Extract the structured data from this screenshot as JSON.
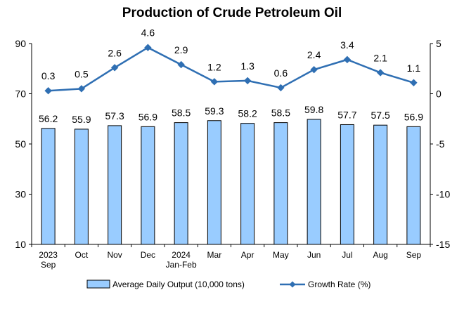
{
  "chart_data": {
    "type": "bar",
    "title": "Production of Crude Petroleum Oil",
    "categories": [
      [
        "2023",
        "Sep"
      ],
      [
        "Oct"
      ],
      [
        "Nov"
      ],
      [
        "Dec"
      ],
      [
        "2024",
        "Jan-Feb"
      ],
      [
        "Mar"
      ],
      [
        "Apr"
      ],
      [
        "May"
      ],
      [
        "Jun"
      ],
      [
        "Jul"
      ],
      [
        "Aug"
      ],
      [
        "Sep"
      ]
    ],
    "series": [
      {
        "name": "Average Daily Output (10,000 tons)",
        "type": "bar",
        "axis": "left",
        "color": "#99ccff",
        "values": [
          56.2,
          55.9,
          57.3,
          56.9,
          58.5,
          59.3,
          58.2,
          58.5,
          59.8,
          57.7,
          57.5,
          56.9
        ],
        "labels": [
          "56.2",
          "55.9",
          "57.3",
          "56.9",
          "58.5",
          "59.3",
          "58.2",
          "58.5",
          "59.8",
          "57.7",
          "57.5",
          "56.9"
        ]
      },
      {
        "name": "Growth Rate (%)",
        "type": "line",
        "axis": "right",
        "color": "#2f6fb3",
        "marker": "diamond",
        "values": [
          0.3,
          0.5,
          2.6,
          4.6,
          2.9,
          1.2,
          1.3,
          0.6,
          2.4,
          3.4,
          2.1,
          1.1
        ],
        "labels": [
          "0.3",
          "0.5",
          "2.6",
          "4.6",
          "2.9",
          "1.2",
          "1.3",
          "0.6",
          "2.4",
          "3.4",
          "2.1",
          "1.1"
        ]
      }
    ],
    "y_left": {
      "min": 10,
      "max": 90,
      "ticks": [
        10,
        30,
        50,
        70,
        90
      ],
      "tick_labels": [
        "10",
        "30",
        "50",
        "70",
        "90"
      ]
    },
    "y_right": {
      "min": -15,
      "max": 5,
      "ticks": [
        -15,
        -10,
        -5,
        0,
        5
      ],
      "tick_labels": [
        "-15",
        "-10",
        "-5",
        "0",
        "5"
      ]
    },
    "grid": false,
    "legend": "bottom"
  }
}
